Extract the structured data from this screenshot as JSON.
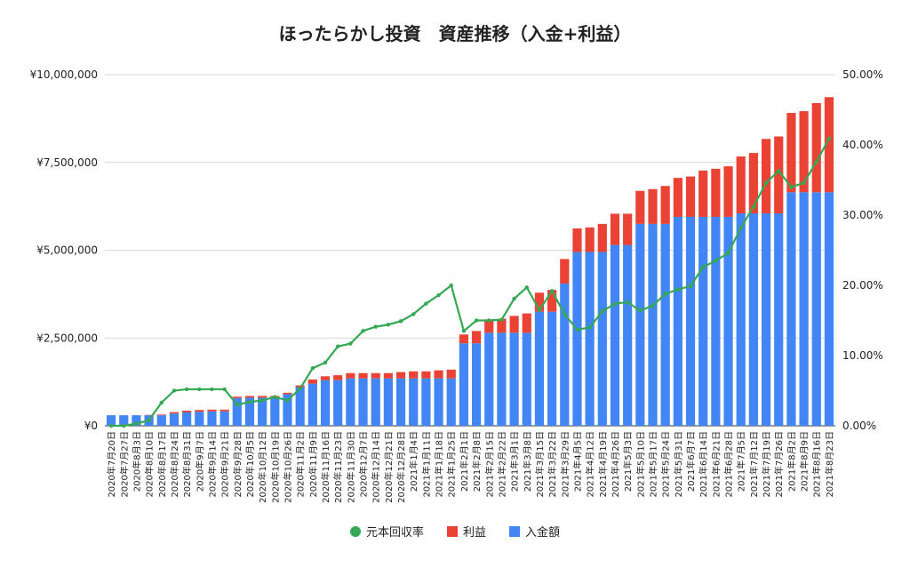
{
  "chart_data": {
    "type": "bar",
    "title": "ほったらかし投資　資産推移（入金+利益）",
    "stacked": true,
    "categories": [
      "2020年7月20日",
      "2020年7月27日",
      "2020年8月3日",
      "2020年8月10日",
      "2020年8月17日",
      "2020年8月24日",
      "2020年8月31日",
      "2020年9月7日",
      "2020年9月14日",
      "2020年9月21日",
      "2020年9月28日",
      "2020年10月5日",
      "2020年10月12日",
      "2020年10月19日",
      "2020年10月26日",
      "2020年11月2日",
      "2020年11月9日",
      "2020年11月16日",
      "2020年11月23日",
      "2020年11月30日",
      "2020年12月7日",
      "2020年12月14日",
      "2020年12月21日",
      "2020年12月28日",
      "2021年1月4日",
      "2021年1月11日",
      "2021年1月18日",
      "2021年1月25日",
      "2021年2月1日",
      "2021年2月8日",
      "2021年2月15日",
      "2021年2月22日",
      "2021年3月1日",
      "2021年3月8日",
      "2021年3月15日",
      "2021年3月22日",
      "2021年3月29日",
      "2021年4月5日",
      "2021年4月12日",
      "2021年4月19日",
      "2021年4月26日",
      "2021年5月3日",
      "2021年5月10日",
      "2021年5月17日",
      "2021年5月24日",
      "2021年5月31日",
      "2021年6月7日",
      "2021年6月14日",
      "2021年6月21日",
      "2021年6月28日",
      "2021年7月5日",
      "2021年7月12日",
      "2021年7月19日",
      "2021年7月26日",
      "2021年8月2日",
      "2021年8月9日",
      "2021年8月16日",
      "2021年8月23日"
    ],
    "series": [
      {
        "name": "入金額",
        "kind": "bar",
        "axis": "left",
        "color": "#4285f4",
        "values": [
          300000,
          300000,
          300000,
          300000,
          300000,
          350000,
          380000,
          400000,
          410000,
          410000,
          790000,
          800000,
          800000,
          800000,
          900000,
          1100000,
          1200000,
          1300000,
          1300000,
          1350000,
          1350000,
          1350000,
          1350000,
          1350000,
          1350000,
          1350000,
          1350000,
          1350000,
          2350000,
          2350000,
          2650000,
          2650000,
          2650000,
          2650000,
          3250000,
          3250000,
          4050000,
          4950000,
          4950000,
          4950000,
          5150000,
          5150000,
          5750000,
          5750000,
          5750000,
          5950000,
          5950000,
          5950000,
          5950000,
          5950000,
          6050000,
          6050000,
          6050000,
          6050000,
          6650000,
          6650000,
          6650000,
          6650000
        ]
      },
      {
        "name": "利益",
        "kind": "bar",
        "axis": "left",
        "color": "#ea4335",
        "values": [
          0,
          0,
          0,
          10000,
          20000,
          40000,
          50000,
          50000,
          50000,
          50000,
          40000,
          50000,
          50000,
          50000,
          40000,
          50000,
          120000,
          110000,
          140000,
          150000,
          150000,
          150000,
          150000,
          180000,
          200000,
          200000,
          230000,
          250000,
          250000,
          350000,
          380000,
          400000,
          480000,
          550000,
          540000,
          620000,
          700000,
          670000,
          700000,
          800000,
          890000,
          890000,
          940000,
          990000,
          1080000,
          1110000,
          1150000,
          1320000,
          1370000,
          1440000,
          1620000,
          1720000,
          2120000,
          2190000,
          2260000,
          2310000,
          2540000,
          2710000
        ]
      },
      {
        "name": "元本回収率",
        "kind": "line",
        "axis": "right",
        "color": "#34a853",
        "values": [
          0.0,
          0.0,
          0.3,
          0.8,
          3.3,
          5.0,
          5.2,
          5.2,
          5.2,
          5.2,
          3.0,
          3.4,
          3.6,
          4.1,
          3.6,
          5.3,
          8.2,
          9.0,
          11.3,
          11.7,
          13.5,
          14.1,
          14.4,
          14.9,
          15.9,
          17.4,
          18.6,
          20.0,
          13.5,
          15.0,
          15.0,
          15.1,
          18.1,
          19.7,
          16.5,
          19.2,
          15.9,
          13.7,
          14.0,
          16.3,
          17.4,
          17.6,
          16.4,
          17.1,
          18.8,
          19.4,
          19.9,
          22.6,
          23.5,
          24.6,
          28.2,
          31.2,
          34.6,
          36.3,
          34.0,
          34.6,
          37.6,
          40.9
        ]
      }
    ],
    "y_left": {
      "min": 0,
      "max": 10000000,
      "ticks": [
        "¥0",
        "¥2,500,000",
        "¥5,000,000",
        "¥7,500,000",
        "¥10,000,000"
      ]
    },
    "y_right": {
      "min": 0,
      "max": 50,
      "ticks": [
        "0.00%",
        "10.00%",
        "20.00%",
        "30.00%",
        "40.00%",
        "50.00%"
      ]
    },
    "grid": true,
    "legend_position": "bottom"
  },
  "legend": [
    {
      "label": "元本回収率",
      "color": "#34a853",
      "shape": "circle"
    },
    {
      "label": "利益",
      "color": "#ea4335",
      "shape": "square"
    },
    {
      "label": "入金額",
      "color": "#4285f4",
      "shape": "square"
    }
  ]
}
